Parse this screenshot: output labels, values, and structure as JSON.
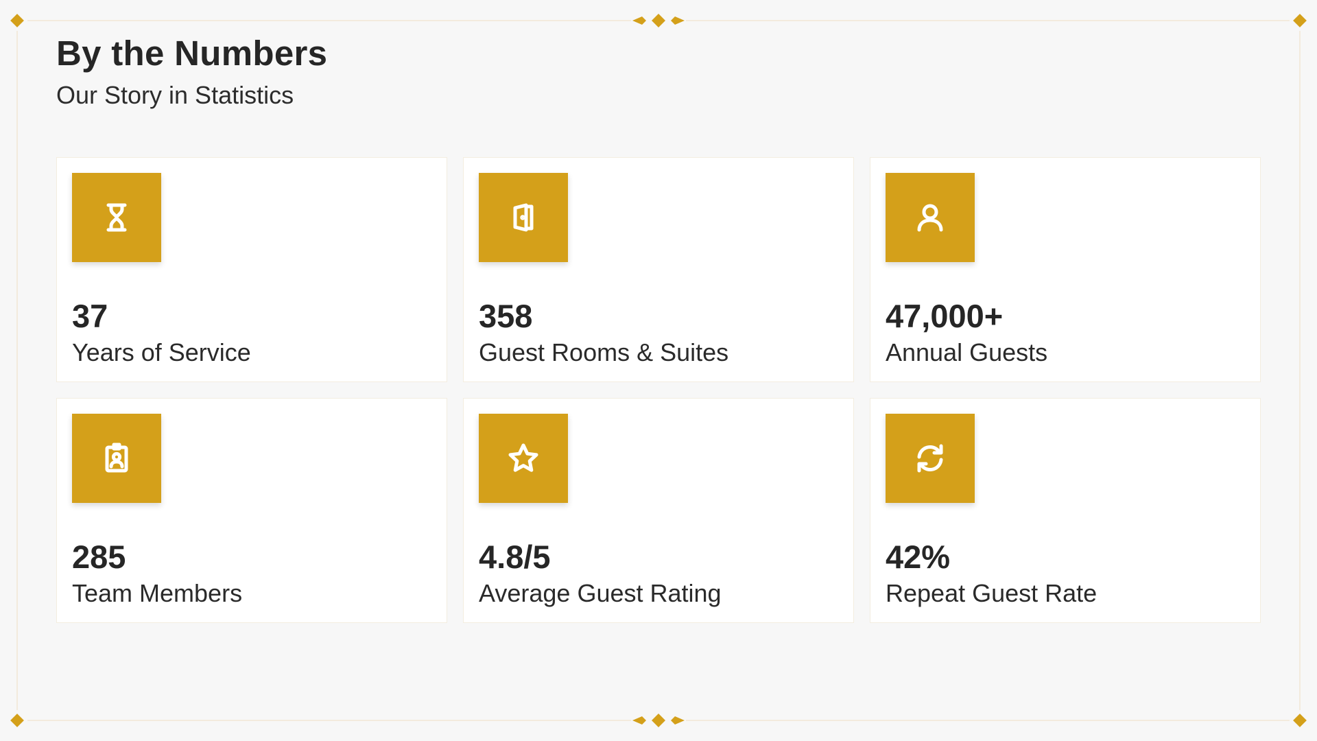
{
  "header": {
    "title": "By the Numbers",
    "subtitle": "Our Story in Statistics"
  },
  "accent_color": "#D4A01A",
  "stats": [
    {
      "icon": "hourglass-icon",
      "value": "37",
      "label": "Years of Service"
    },
    {
      "icon": "door-icon",
      "value": "358",
      "label": "Guest Rooms & Suites"
    },
    {
      "icon": "user-icon",
      "value": "47,000+",
      "label": "Annual Guests"
    },
    {
      "icon": "id-badge-icon",
      "value": "285",
      "label": "Team Members"
    },
    {
      "icon": "star-icon",
      "value": "4.8/5",
      "label": "Average Guest Rating"
    },
    {
      "icon": "refresh-icon",
      "value": "42%",
      "label": "Repeat Guest Rate"
    }
  ]
}
